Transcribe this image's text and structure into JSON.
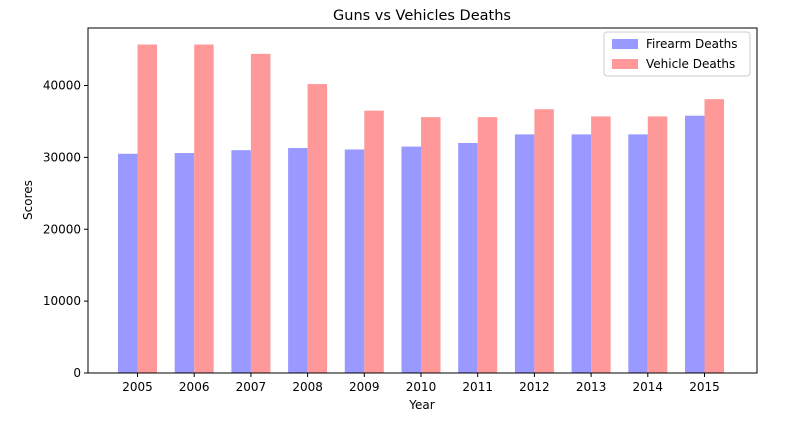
{
  "chart_data": {
    "type": "bar",
    "title": "Guns vs Vehicles Deaths",
    "xlabel": "Year",
    "ylabel": "Scores",
    "categories": [
      "2005",
      "2006",
      "2007",
      "2008",
      "2009",
      "2010",
      "2011",
      "2012",
      "2013",
      "2014",
      "2015"
    ],
    "series": [
      {
        "name": "Firearm Deaths",
        "color": "#9999ff",
        "values": [
          30500,
          30600,
          31000,
          31300,
          31100,
          31500,
          32000,
          33200,
          33200,
          33200,
          35800
        ]
      },
      {
        "name": "Vehicle Deaths",
        "color": "#ff9999",
        "values": [
          45700,
          45700,
          44400,
          40200,
          36500,
          35600,
          35600,
          36700,
          35700,
          35700,
          38100
        ]
      }
    ],
    "ylim": [
      0,
      48000
    ],
    "yticks": [
      0,
      10000,
      20000,
      30000,
      40000
    ],
    "grid": false,
    "legend_position": "top-right"
  }
}
